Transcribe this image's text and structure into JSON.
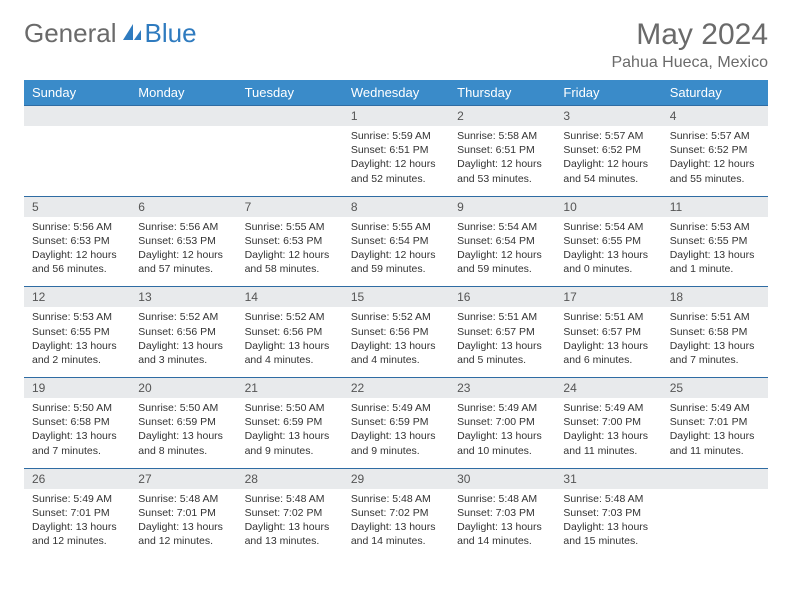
{
  "logo": {
    "general": "General",
    "blue": "Blue"
  },
  "title": "May 2024",
  "location": "Pahua Hueca, Mexico",
  "colors": {
    "header_bg": "#3a8bc9",
    "header_text": "#ffffff",
    "dateband_bg": "#e8eaec",
    "dateband_border": "#2f6ca3",
    "text": "#333333",
    "title_text": "#6a6a6a",
    "logo_blue": "#2f7bbf"
  },
  "weekdays": [
    "Sunday",
    "Monday",
    "Tuesday",
    "Wednesday",
    "Thursday",
    "Friday",
    "Saturday"
  ],
  "rows": [
    {
      "dates": [
        "",
        "",
        "",
        "1",
        "2",
        "3",
        "4"
      ],
      "cells": [
        null,
        null,
        null,
        {
          "sunrise": "Sunrise: 5:59 AM",
          "sunset": "Sunset: 6:51 PM",
          "daylight": "Daylight: 12 hours and 52 minutes."
        },
        {
          "sunrise": "Sunrise: 5:58 AM",
          "sunset": "Sunset: 6:51 PM",
          "daylight": "Daylight: 12 hours and 53 minutes."
        },
        {
          "sunrise": "Sunrise: 5:57 AM",
          "sunset": "Sunset: 6:52 PM",
          "daylight": "Daylight: 12 hours and 54 minutes."
        },
        {
          "sunrise": "Sunrise: 5:57 AM",
          "sunset": "Sunset: 6:52 PM",
          "daylight": "Daylight: 12 hours and 55 minutes."
        }
      ]
    },
    {
      "dates": [
        "5",
        "6",
        "7",
        "8",
        "9",
        "10",
        "11"
      ],
      "cells": [
        {
          "sunrise": "Sunrise: 5:56 AM",
          "sunset": "Sunset: 6:53 PM",
          "daylight": "Daylight: 12 hours and 56 minutes."
        },
        {
          "sunrise": "Sunrise: 5:56 AM",
          "sunset": "Sunset: 6:53 PM",
          "daylight": "Daylight: 12 hours and 57 minutes."
        },
        {
          "sunrise": "Sunrise: 5:55 AM",
          "sunset": "Sunset: 6:53 PM",
          "daylight": "Daylight: 12 hours and 58 minutes."
        },
        {
          "sunrise": "Sunrise: 5:55 AM",
          "sunset": "Sunset: 6:54 PM",
          "daylight": "Daylight: 12 hours and 59 minutes."
        },
        {
          "sunrise": "Sunrise: 5:54 AM",
          "sunset": "Sunset: 6:54 PM",
          "daylight": "Daylight: 12 hours and 59 minutes."
        },
        {
          "sunrise": "Sunrise: 5:54 AM",
          "sunset": "Sunset: 6:55 PM",
          "daylight": "Daylight: 13 hours and 0 minutes."
        },
        {
          "sunrise": "Sunrise: 5:53 AM",
          "sunset": "Sunset: 6:55 PM",
          "daylight": "Daylight: 13 hours and 1 minute."
        }
      ]
    },
    {
      "dates": [
        "12",
        "13",
        "14",
        "15",
        "16",
        "17",
        "18"
      ],
      "cells": [
        {
          "sunrise": "Sunrise: 5:53 AM",
          "sunset": "Sunset: 6:55 PM",
          "daylight": "Daylight: 13 hours and 2 minutes."
        },
        {
          "sunrise": "Sunrise: 5:52 AM",
          "sunset": "Sunset: 6:56 PM",
          "daylight": "Daylight: 13 hours and 3 minutes."
        },
        {
          "sunrise": "Sunrise: 5:52 AM",
          "sunset": "Sunset: 6:56 PM",
          "daylight": "Daylight: 13 hours and 4 minutes."
        },
        {
          "sunrise": "Sunrise: 5:52 AM",
          "sunset": "Sunset: 6:56 PM",
          "daylight": "Daylight: 13 hours and 4 minutes."
        },
        {
          "sunrise": "Sunrise: 5:51 AM",
          "sunset": "Sunset: 6:57 PM",
          "daylight": "Daylight: 13 hours and 5 minutes."
        },
        {
          "sunrise": "Sunrise: 5:51 AM",
          "sunset": "Sunset: 6:57 PM",
          "daylight": "Daylight: 13 hours and 6 minutes."
        },
        {
          "sunrise": "Sunrise: 5:51 AM",
          "sunset": "Sunset: 6:58 PM",
          "daylight": "Daylight: 13 hours and 7 minutes."
        }
      ]
    },
    {
      "dates": [
        "19",
        "20",
        "21",
        "22",
        "23",
        "24",
        "25"
      ],
      "cells": [
        {
          "sunrise": "Sunrise: 5:50 AM",
          "sunset": "Sunset: 6:58 PM",
          "daylight": "Daylight: 13 hours and 7 minutes."
        },
        {
          "sunrise": "Sunrise: 5:50 AM",
          "sunset": "Sunset: 6:59 PM",
          "daylight": "Daylight: 13 hours and 8 minutes."
        },
        {
          "sunrise": "Sunrise: 5:50 AM",
          "sunset": "Sunset: 6:59 PM",
          "daylight": "Daylight: 13 hours and 9 minutes."
        },
        {
          "sunrise": "Sunrise: 5:49 AM",
          "sunset": "Sunset: 6:59 PM",
          "daylight": "Daylight: 13 hours and 9 minutes."
        },
        {
          "sunrise": "Sunrise: 5:49 AM",
          "sunset": "Sunset: 7:00 PM",
          "daylight": "Daylight: 13 hours and 10 minutes."
        },
        {
          "sunrise": "Sunrise: 5:49 AM",
          "sunset": "Sunset: 7:00 PM",
          "daylight": "Daylight: 13 hours and 11 minutes."
        },
        {
          "sunrise": "Sunrise: 5:49 AM",
          "sunset": "Sunset: 7:01 PM",
          "daylight": "Daylight: 13 hours and 11 minutes."
        }
      ]
    },
    {
      "dates": [
        "26",
        "27",
        "28",
        "29",
        "30",
        "31",
        ""
      ],
      "cells": [
        {
          "sunrise": "Sunrise: 5:49 AM",
          "sunset": "Sunset: 7:01 PM",
          "daylight": "Daylight: 13 hours and 12 minutes."
        },
        {
          "sunrise": "Sunrise: 5:48 AM",
          "sunset": "Sunset: 7:01 PM",
          "daylight": "Daylight: 13 hours and 12 minutes."
        },
        {
          "sunrise": "Sunrise: 5:48 AM",
          "sunset": "Sunset: 7:02 PM",
          "daylight": "Daylight: 13 hours and 13 minutes."
        },
        {
          "sunrise": "Sunrise: 5:48 AM",
          "sunset": "Sunset: 7:02 PM",
          "daylight": "Daylight: 13 hours and 14 minutes."
        },
        {
          "sunrise": "Sunrise: 5:48 AM",
          "sunset": "Sunset: 7:03 PM",
          "daylight": "Daylight: 13 hours and 14 minutes."
        },
        {
          "sunrise": "Sunrise: 5:48 AM",
          "sunset": "Sunset: 7:03 PM",
          "daylight": "Daylight: 13 hours and 15 minutes."
        },
        null
      ]
    }
  ]
}
